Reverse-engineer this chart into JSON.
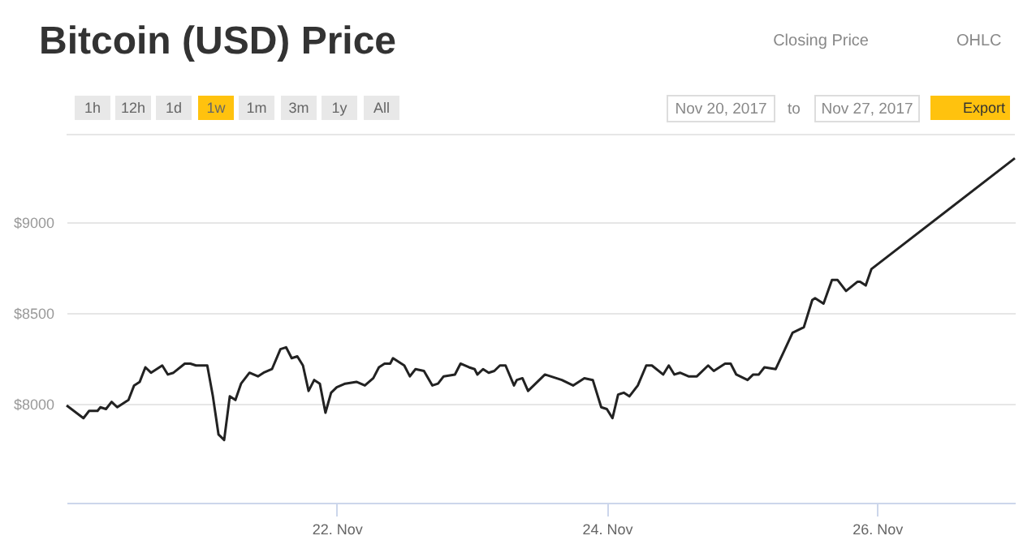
{
  "chart_data": {
    "type": "line",
    "title": "Bitcoin (USD) Price",
    "annotations": [
      "Closing Price",
      "OHLC",
      "1h",
      "12h",
      "1d",
      "1w",
      "1m",
      "3m",
      "1y",
      "All",
      "Nov 20, 2017",
      "to",
      "Nov 27, 2017",
      "Export"
    ],
    "xlim": [
      "2017-11-20T00:00",
      "2017-11-27T00:30"
    ],
    "xticks": [
      {
        "value": "2017-11-22",
        "label": "22. Nov"
      },
      {
        "value": "2017-11-24",
        "label": "24. Nov"
      },
      {
        "value": "2017-11-26",
        "label": "26. Nov"
      }
    ],
    "ylim": [
      7455,
      9480
    ],
    "yticks": [
      {
        "value": 8000,
        "label": "$8000"
      },
      {
        "value": 8500,
        "label": "$8500"
      },
      {
        "value": 9000,
        "label": "$9000"
      }
    ],
    "grid": "y",
    "marker": "none",
    "line_style": "solid",
    "series": [
      {
        "color": "#222222",
        "x": [
          "2017-11-20T00:00",
          "2017-11-20T03:00",
          "2017-11-20T04:00",
          "2017-11-20T05:30",
          "2017-11-20T06:00",
          "2017-11-20T07:00",
          "2017-11-20T08:00",
          "2017-11-20T09:00",
          "2017-11-20T11:00",
          "2017-11-20T12:00",
          "2017-11-20T13:00",
          "2017-11-20T14:00",
          "2017-11-20T15:00",
          "2017-11-20T17:00",
          "2017-11-20T18:00",
          "2017-11-20T19:00",
          "2017-11-20T21:00",
          "2017-11-20T22:00",
          "2017-11-20T23:00",
          "2017-11-21T01:00",
          "2017-11-21T02:00",
          "2017-11-21T03:00",
          "2017-11-21T04:00",
          "2017-11-21T05:00",
          "2017-11-21T06:00",
          "2017-11-21T07:00",
          "2017-11-21T08:30",
          "2017-11-21T10:00",
          "2017-11-21T11:00",
          "2017-11-21T12:30",
          "2017-11-21T14:00",
          "2017-11-21T15:00",
          "2017-11-21T16:00",
          "2017-11-21T17:00",
          "2017-11-21T18:00",
          "2017-11-21T19:00",
          "2017-11-21T20:00",
          "2017-11-21T21:00",
          "2017-11-21T22:00",
          "2017-11-21T23:00",
          "2017-11-22T00:00",
          "2017-11-22T01:30",
          "2017-11-22T03:30",
          "2017-11-22T05:00",
          "2017-11-22T06:30",
          "2017-11-22T07:30",
          "2017-11-22T08:30",
          "2017-11-22T09:30",
          "2017-11-22T10:00",
          "2017-11-22T12:00",
          "2017-11-22T13:00",
          "2017-11-22T14:00",
          "2017-11-22T15:30",
          "2017-11-22T17:00",
          "2017-11-22T18:00",
          "2017-11-22T19:00",
          "2017-11-22T21:00",
          "2017-11-22T22:00",
          "2017-11-22T23:30",
          "2017-11-23T00:30",
          "2017-11-23T01:00",
          "2017-11-23T02:00",
          "2017-11-23T03:00",
          "2017-11-23T04:00",
          "2017-11-23T05:00",
          "2017-11-23T06:00",
          "2017-11-23T07:30",
          "2017-11-23T08:00",
          "2017-11-23T09:00",
          "2017-11-23T10:00",
          "2017-11-23T13:00",
          "2017-11-23T16:00",
          "2017-11-23T18:00",
          "2017-11-23T20:00",
          "2017-11-23T21:30",
          "2017-11-23T23:00",
          "2017-11-24T00:00",
          "2017-11-24T01:00",
          "2017-11-24T02:00",
          "2017-11-24T03:00",
          "2017-11-24T04:00",
          "2017-11-24T05:30",
          "2017-11-24T07:00",
          "2017-11-24T08:00",
          "2017-11-24T10:00",
          "2017-11-24T11:00",
          "2017-11-24T12:00",
          "2017-11-24T13:00",
          "2017-11-24T14:30",
          "2017-11-24T16:00",
          "2017-11-24T18:00",
          "2017-11-24T19:00",
          "2017-11-24T21:00",
          "2017-11-24T22:00",
          "2017-11-24T23:00",
          "2017-11-25T01:00",
          "2017-11-25T02:00",
          "2017-11-25T03:00",
          "2017-11-25T04:00",
          "2017-11-25T06:00",
          "2017-11-25T07:30",
          "2017-11-25T09:00",
          "2017-11-25T11:00",
          "2017-11-25T12:30",
          "2017-11-25T13:00",
          "2017-11-25T14:30",
          "2017-11-25T16:00",
          "2017-11-25T17:00",
          "2017-11-25T18:30",
          "2017-11-25T20:30",
          "2017-11-25T21:00",
          "2017-11-25T22:00",
          "2017-11-25T23:00",
          "2017-11-27T00:30"
        ],
        "values": [
          7990,
          7920,
          7960,
          7960,
          7980,
          7970,
          8010,
          7980,
          8020,
          8100,
          8120,
          8200,
          8170,
          8210,
          8160,
          8170,
          8220,
          8220,
          8210,
          8210,
          8040,
          7830,
          7800,
          8040,
          8020,
          8110,
          8170,
          8150,
          8170,
          8190,
          8300,
          8310,
          8250,
          8260,
          8210,
          8070,
          8130,
          8110,
          7950,
          8060,
          8090,
          8110,
          8120,
          8100,
          8140,
          8200,
          8220,
          8220,
          8250,
          8210,
          8150,
          8190,
          8180,
          8100,
          8110,
          8150,
          8160,
          8220,
          8200,
          8190,
          8160,
          8190,
          8170,
          8180,
          8210,
          8210,
          8100,
          8130,
          8140,
          8070,
          8160,
          8130,
          8100,
          8140,
          8130,
          7980,
          7970,
          7920,
          8050,
          8060,
          8040,
          8100,
          8210,
          8210,
          8160,
          8210,
          8160,
          8170,
          8150,
          8150,
          8210,
          8180,
          8220,
          8220,
          8160,
          8130,
          8160,
          8160,
          8200,
          8190,
          8290,
          8390,
          8420,
          8570,
          8580,
          8550,
          8680,
          8680,
          8620,
          8670,
          8670,
          8650,
          8740,
          9350
        ]
      }
    ]
  }
}
